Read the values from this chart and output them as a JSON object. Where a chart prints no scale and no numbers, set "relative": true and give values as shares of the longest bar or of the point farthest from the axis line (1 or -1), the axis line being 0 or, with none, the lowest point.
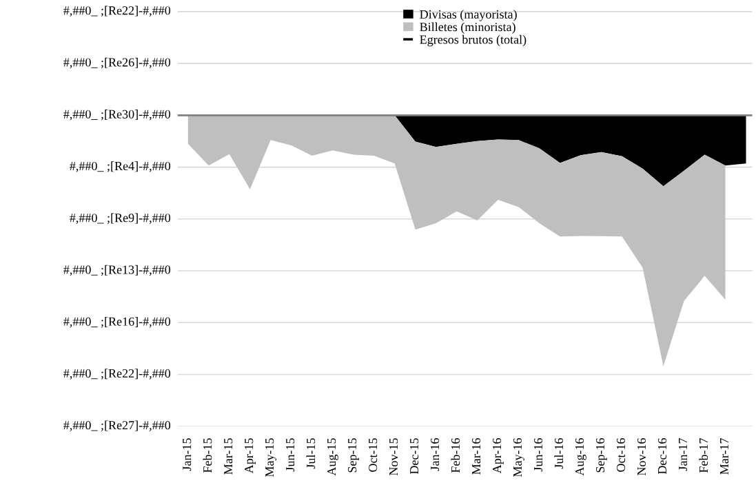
{
  "chart_data": {
    "type": "area",
    "stacked": true,
    "relative": true,
    "categories": [
      "Jan-15",
      "Feb-15",
      "Mar-15",
      "Apr-15",
      "May-15",
      "Jun-15",
      "Jul-15",
      "Aug-15",
      "Sep-15",
      "Oct-15",
      "Nov-15",
      "Dec-15",
      "Jan-16",
      "Feb-16",
      "Mar-16",
      "Apr-16",
      "May-16",
      "Jun-16",
      "Jul-16",
      "Aug-16",
      "Sep-16",
      "Oct-16",
      "Nov-16",
      "Dec-16",
      "Jan-17",
      "Feb-17",
      "Mar-17",
      null
    ],
    "series": [
      {
        "name": "Divisas (mayorista)",
        "color": "#000000",
        "values": [
          0,
          0,
          0,
          0,
          0,
          0,
          0,
          0,
          0,
          0,
          0,
          -0.105,
          -0.126,
          -0.114,
          -0.103,
          -0.097,
          -0.099,
          -0.132,
          -0.19,
          -0.159,
          -0.147,
          -0.163,
          -0.213,
          -0.283,
          -0.221,
          -0.157,
          -0.2,
          -0.192
        ]
      },
      {
        "name": "Billetes (minorista)",
        "color": "#bfbfbf",
        "values": [
          -0.114,
          -0.2,
          -0.155,
          -0.295,
          -0.099,
          -0.12,
          -0.161,
          -0.14,
          -0.157,
          -0.161,
          -0.192,
          -0.351,
          -0.304,
          -0.269,
          -0.316,
          -0.24,
          -0.267,
          -0.298,
          -0.293,
          -0.322,
          -0.335,
          -0.32,
          -0.395,
          -0.717,
          -0.519,
          -0.483,
          -0.535,
          null
        ]
      },
      {
        "name": "Egresos brutos (total)",
        "type": "line",
        "color": "#000000",
        "values": [
          null,
          null,
          null,
          null,
          null,
          null,
          null,
          null,
          null,
          null,
          null,
          null,
          null,
          null,
          null,
          null,
          null,
          null,
          null,
          null,
          null,
          null,
          null,
          null,
          null,
          null,
          null,
          null
        ]
      }
    ],
    "annotations": [
      "#,##0_ ;[Re22]-#,##0",
      "#,##0_ ;[Re26]-#,##0",
      "#,##0_ ;[Re30]-#,##0",
      "#,##0_ ;[Re4]-#,##0",
      "#,##0_ ;[Re9]-#,##0",
      "#,##0_ ;[Re13]-#,##0",
      "#,##0_ ;[Re16]-#,##0",
      "#,##0_ ;[Re22]-#,##0",
      "#,##0_ ;[Re27]-#,##0"
    ],
    "ref_lines": [
      {
        "axis": "y",
        "value": 0,
        "color": "#7f7f7f"
      }
    ],
    "grid": "y",
    "legend": "top"
  }
}
